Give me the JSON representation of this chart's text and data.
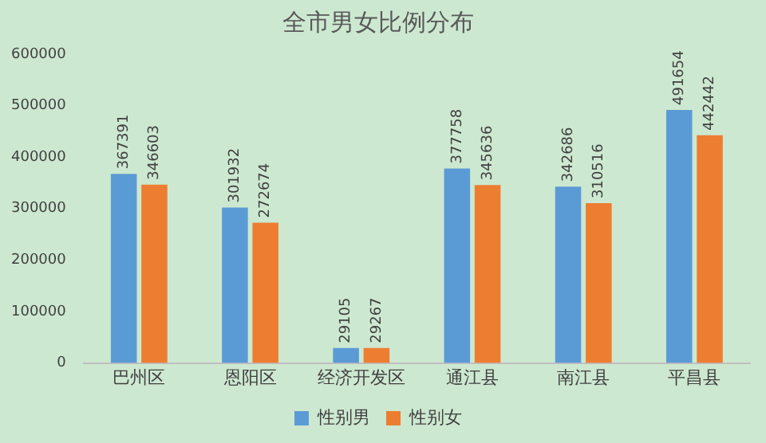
{
  "chart_data": {
    "type": "bar",
    "title": "全市男女比例分布",
    "categories": [
      "巴州区",
      "恩阳区",
      "经济开发区",
      "通江县",
      "南江县",
      "平昌县"
    ],
    "series": [
      {
        "name": "性别男",
        "color": "#5b9bd5",
        "values": [
          367391,
          301932,
          29105,
          377758,
          342686,
          491654
        ]
      },
      {
        "name": "性别女",
        "color": "#ed7d31",
        "values": [
          346603,
          272674,
          29267,
          345636,
          310516,
          442442
        ]
      }
    ],
    "ylim": [
      0,
      600000
    ],
    "yticks": [
      0,
      100000,
      200000,
      300000,
      400000,
      500000,
      600000
    ],
    "data_labels": true,
    "legend": "bottom"
  }
}
